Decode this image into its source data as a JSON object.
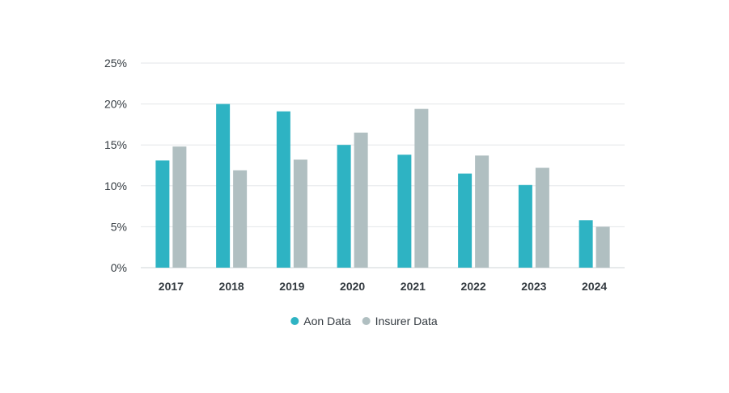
{
  "chart_data": {
    "type": "bar",
    "categories": [
      "2017",
      "2018",
      "2019",
      "2020",
      "2021",
      "2022",
      "2023",
      "2024"
    ],
    "series": [
      {
        "name": "Aon Data",
        "color": "#2eb3c3",
        "values": [
          13.1,
          20.0,
          19.1,
          15.0,
          13.8,
          11.5,
          10.1,
          5.8
        ]
      },
      {
        "name": "Insurer Data",
        "color": "#b0bfc1",
        "values": [
          14.8,
          11.9,
          13.2,
          16.5,
          19.4,
          13.7,
          12.2,
          5.0
        ]
      }
    ],
    "ylim": [
      0,
      25
    ],
    "yticks": [
      0,
      5,
      10,
      15,
      20,
      25
    ],
    "ytick_format": "%",
    "grid": true,
    "legend_position": "bottom-center"
  }
}
